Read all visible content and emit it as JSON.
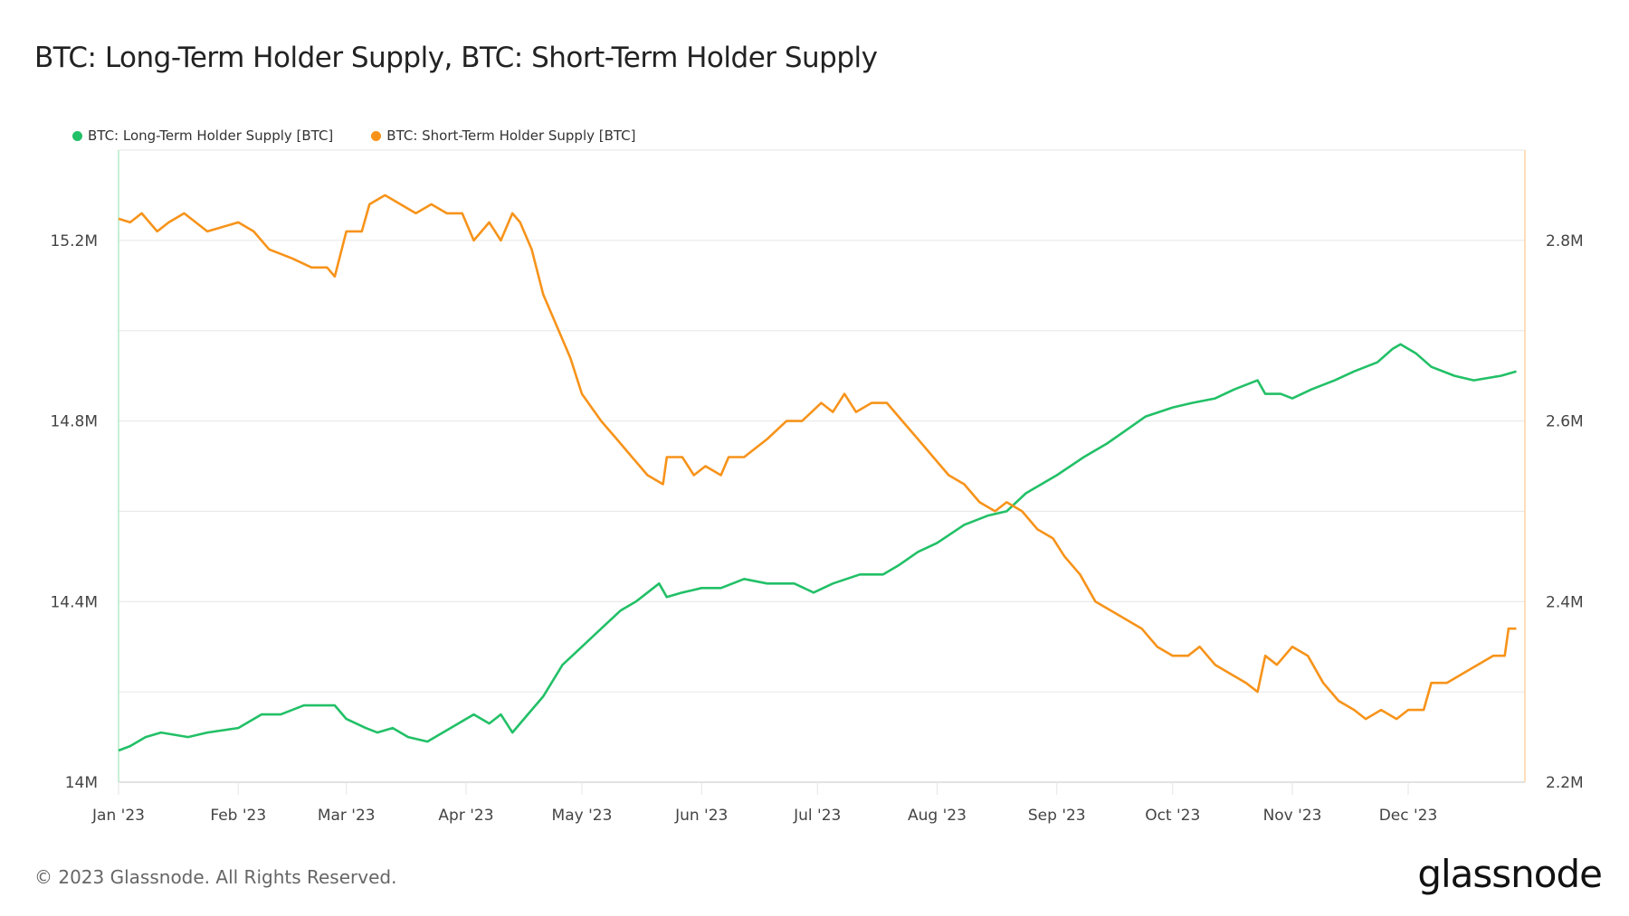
{
  "title": "BTC: Long-Term Holder Supply, BTC: Short-Term Holder Supply",
  "footer": "© 2023 Glassnode. All Rights Reserved.",
  "logo": "glassnode",
  "chart_data": {
    "type": "line",
    "title": "BTC: Long-Term Holder Supply, BTC: Short-Term Holder Supply",
    "legend_position": "top-left",
    "grid": true,
    "x_ticks": [
      "Jan '23",
      "Feb '23",
      "Mar '23",
      "Apr '23",
      "May '23",
      "Jun '23",
      "Jul '23",
      "Aug '23",
      "Sep '23",
      "Oct '23",
      "Nov '23",
      "Dec '23"
    ],
    "xlim": [
      "2023-01-01",
      "2023-12-31"
    ],
    "y_left": {
      "ylim": [
        14.0,
        15.4
      ],
      "unit": "M",
      "ticks": [
        "14M",
        "14.4M",
        "14.8M",
        "15.2M"
      ],
      "tick_values": [
        14.0,
        14.4,
        14.8,
        15.2
      ]
    },
    "y_right": {
      "ylim": [
        2.2,
        2.9
      ],
      "unit": "M",
      "ticks": [
        "2.2M",
        "2.4M",
        "2.6M",
        "2.8M"
      ],
      "tick_values": [
        2.2,
        2.4,
        2.6,
        2.8
      ]
    },
    "series": [
      {
        "name": "BTC: Long-Term Holder Supply [BTC]",
        "axis": "left",
        "color": "#22c067",
        "points": [
          [
            "2023-01-01",
            14.07
          ],
          [
            "2023-01-04",
            14.08
          ],
          [
            "2023-01-08",
            14.1
          ],
          [
            "2023-01-12",
            14.11
          ],
          [
            "2023-01-19",
            14.1
          ],
          [
            "2023-01-24",
            14.11
          ],
          [
            "2023-02-01",
            14.12
          ],
          [
            "2023-02-07",
            14.15
          ],
          [
            "2023-02-12",
            14.15
          ],
          [
            "2023-02-18",
            14.17
          ],
          [
            "2023-02-22",
            14.17
          ],
          [
            "2023-02-26",
            14.17
          ],
          [
            "2023-03-01",
            14.14
          ],
          [
            "2023-03-06",
            14.12
          ],
          [
            "2023-03-09",
            14.11
          ],
          [
            "2023-03-13",
            14.12
          ],
          [
            "2023-03-17",
            14.1
          ],
          [
            "2023-03-22",
            14.09
          ],
          [
            "2023-03-28",
            14.12
          ],
          [
            "2023-04-03",
            14.15
          ],
          [
            "2023-04-07",
            14.13
          ],
          [
            "2023-04-10",
            14.15
          ],
          [
            "2023-04-13",
            14.11
          ],
          [
            "2023-04-17",
            14.15
          ],
          [
            "2023-04-21",
            14.19
          ],
          [
            "2023-04-26",
            14.26
          ],
          [
            "2023-05-01",
            14.3
          ],
          [
            "2023-05-06",
            14.34
          ],
          [
            "2023-05-11",
            14.38
          ],
          [
            "2023-05-15",
            14.4
          ],
          [
            "2023-05-21",
            14.44
          ],
          [
            "2023-05-23",
            14.41
          ],
          [
            "2023-05-27",
            14.42
          ],
          [
            "2023-06-01",
            14.43
          ],
          [
            "2023-06-06",
            14.43
          ],
          [
            "2023-06-12",
            14.45
          ],
          [
            "2023-06-18",
            14.44
          ],
          [
            "2023-06-25",
            14.44
          ],
          [
            "2023-06-30",
            14.42
          ],
          [
            "2023-07-05",
            14.44
          ],
          [
            "2023-07-12",
            14.46
          ],
          [
            "2023-07-18",
            14.46
          ],
          [
            "2023-07-22",
            14.48
          ],
          [
            "2023-07-27",
            14.51
          ],
          [
            "2023-08-01",
            14.53
          ],
          [
            "2023-08-08",
            14.57
          ],
          [
            "2023-08-14",
            14.59
          ],
          [
            "2023-08-19",
            14.6
          ],
          [
            "2023-08-24",
            14.64
          ],
          [
            "2023-09-01",
            14.68
          ],
          [
            "2023-09-08",
            14.72
          ],
          [
            "2023-09-14",
            14.75
          ],
          [
            "2023-09-19",
            14.78
          ],
          [
            "2023-09-24",
            14.81
          ],
          [
            "2023-10-01",
            14.83
          ],
          [
            "2023-10-06",
            14.84
          ],
          [
            "2023-10-12",
            14.85
          ],
          [
            "2023-10-17",
            14.87
          ],
          [
            "2023-10-23",
            14.89
          ],
          [
            "2023-10-25",
            14.86
          ],
          [
            "2023-10-29",
            14.86
          ],
          [
            "2023-11-01",
            14.85
          ],
          [
            "2023-11-06",
            14.87
          ],
          [
            "2023-11-12",
            14.89
          ],
          [
            "2023-11-17",
            14.91
          ],
          [
            "2023-11-23",
            14.93
          ],
          [
            "2023-11-27",
            14.96
          ],
          [
            "2023-11-29",
            14.97
          ],
          [
            "2023-12-03",
            14.95
          ],
          [
            "2023-12-07",
            14.92
          ],
          [
            "2023-12-13",
            14.9
          ],
          [
            "2023-12-18",
            14.89
          ],
          [
            "2023-12-25",
            14.9
          ],
          [
            "2023-12-29",
            14.91
          ]
        ]
      },
      {
        "name": "BTC: Short-Term Holder Supply [BTC]",
        "axis": "right",
        "color": "#f7931a",
        "points": [
          [
            "2023-01-01",
            2.824
          ],
          [
            "2023-01-04",
            2.82
          ],
          [
            "2023-01-07",
            2.83
          ],
          [
            "2023-01-11",
            2.81
          ],
          [
            "2023-01-14",
            2.82
          ],
          [
            "2023-01-18",
            2.83
          ],
          [
            "2023-01-24",
            2.81
          ],
          [
            "2023-02-01",
            2.82
          ],
          [
            "2023-02-05",
            2.81
          ],
          [
            "2023-02-09",
            2.79
          ],
          [
            "2023-02-15",
            2.78
          ],
          [
            "2023-02-20",
            2.77
          ],
          [
            "2023-02-24",
            2.77
          ],
          [
            "2023-02-26",
            2.76
          ],
          [
            "2023-03-01",
            2.81
          ],
          [
            "2023-03-05",
            2.81
          ],
          [
            "2023-03-07",
            2.84
          ],
          [
            "2023-03-11",
            2.85
          ],
          [
            "2023-03-15",
            2.84
          ],
          [
            "2023-03-19",
            2.83
          ],
          [
            "2023-03-23",
            2.84
          ],
          [
            "2023-03-27",
            2.83
          ],
          [
            "2023-03-31",
            2.83
          ],
          [
            "2023-04-03",
            2.8
          ],
          [
            "2023-04-07",
            2.82
          ],
          [
            "2023-04-10",
            2.8
          ],
          [
            "2023-04-13",
            2.83
          ],
          [
            "2023-04-15",
            2.82
          ],
          [
            "2023-04-18",
            2.79
          ],
          [
            "2023-04-21",
            2.74
          ],
          [
            "2023-04-25",
            2.7
          ],
          [
            "2023-04-28",
            2.67
          ],
          [
            "2023-05-01",
            2.63
          ],
          [
            "2023-05-06",
            2.6
          ],
          [
            "2023-05-10",
            2.58
          ],
          [
            "2023-05-14",
            2.56
          ],
          [
            "2023-05-18",
            2.54
          ],
          [
            "2023-05-22",
            2.53
          ],
          [
            "2023-05-23",
            2.56
          ],
          [
            "2023-05-27",
            2.56
          ],
          [
            "2023-05-30",
            2.54
          ],
          [
            "2023-06-02",
            2.55
          ],
          [
            "2023-06-06",
            2.54
          ],
          [
            "2023-06-08",
            2.56
          ],
          [
            "2023-06-12",
            2.56
          ],
          [
            "2023-06-18",
            2.58
          ],
          [
            "2023-06-23",
            2.6
          ],
          [
            "2023-06-27",
            2.6
          ],
          [
            "2023-07-02",
            2.62
          ],
          [
            "2023-07-05",
            2.61
          ],
          [
            "2023-07-08",
            2.63
          ],
          [
            "2023-07-11",
            2.61
          ],
          [
            "2023-07-15",
            2.62
          ],
          [
            "2023-07-19",
            2.62
          ],
          [
            "2023-07-23",
            2.6
          ],
          [
            "2023-07-27",
            2.58
          ],
          [
            "2023-07-31",
            2.56
          ],
          [
            "2023-08-04",
            2.54
          ],
          [
            "2023-08-08",
            2.53
          ],
          [
            "2023-08-12",
            2.51
          ],
          [
            "2023-08-16",
            2.5
          ],
          [
            "2023-08-19",
            2.51
          ],
          [
            "2023-08-23",
            2.5
          ],
          [
            "2023-08-27",
            2.48
          ],
          [
            "2023-08-31",
            2.47
          ],
          [
            "2023-09-03",
            2.45
          ],
          [
            "2023-09-07",
            2.43
          ],
          [
            "2023-09-11",
            2.4
          ],
          [
            "2023-09-15",
            2.39
          ],
          [
            "2023-09-19",
            2.38
          ],
          [
            "2023-09-23",
            2.37
          ],
          [
            "2023-09-27",
            2.35
          ],
          [
            "2023-10-01",
            2.34
          ],
          [
            "2023-10-05",
            2.34
          ],
          [
            "2023-10-08",
            2.35
          ],
          [
            "2023-10-12",
            2.33
          ],
          [
            "2023-10-16",
            2.32
          ],
          [
            "2023-10-20",
            2.31
          ],
          [
            "2023-10-23",
            2.3
          ],
          [
            "2023-10-25",
            2.34
          ],
          [
            "2023-10-28",
            2.33
          ],
          [
            "2023-11-01",
            2.35
          ],
          [
            "2023-11-05",
            2.34
          ],
          [
            "2023-11-09",
            2.31
          ],
          [
            "2023-11-13",
            2.29
          ],
          [
            "2023-11-17",
            2.28
          ],
          [
            "2023-11-20",
            2.27
          ],
          [
            "2023-11-24",
            2.28
          ],
          [
            "2023-11-28",
            2.27
          ],
          [
            "2023-12-01",
            2.28
          ],
          [
            "2023-12-05",
            2.28
          ],
          [
            "2023-12-07",
            2.31
          ],
          [
            "2023-12-11",
            2.31
          ],
          [
            "2023-12-15",
            2.32
          ],
          [
            "2023-12-19",
            2.33
          ],
          [
            "2023-12-23",
            2.34
          ],
          [
            "2023-12-26",
            2.34
          ],
          [
            "2023-12-27",
            2.37
          ],
          [
            "2023-12-29",
            2.37
          ]
        ]
      }
    ]
  }
}
